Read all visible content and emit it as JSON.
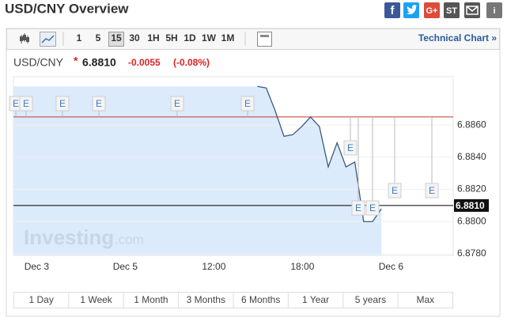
{
  "header": {
    "title": "USD/CNY Overview",
    "share_icons": [
      "f",
      "G+",
      "ST",
      "i"
    ]
  },
  "toolbar": {
    "intervals": [
      "1",
      "5",
      "15",
      "30",
      "1H",
      "5H",
      "1D",
      "1W",
      "1M"
    ],
    "active": "15",
    "link": "Technical Chart »"
  },
  "quote": {
    "symbol": "USD/CNY",
    "marker": "*",
    "price": {
      "value": 6.881,
      "label": "6.8810"
    },
    "change": -0.0055,
    "change_percent": "(-0.08%)"
  },
  "chart_data": {
    "type": "line",
    "categories": [
      null,
      null,
      "Dec 3",
      null,
      null,
      null,
      null,
      null,
      null,
      null,
      null,
      null,
      "Dec 5",
      null,
      null,
      null,
      null,
      null,
      null,
      null,
      null,
      null,
      "12:00",
      null,
      null,
      null,
      null,
      null,
      null,
      null,
      null,
      null,
      "18:00",
      null,
      null,
      null,
      null,
      null,
      null,
      null,
      null,
      null,
      "Dec 6",
      null,
      null,
      null,
      null,
      null,
      null,
      null
    ],
    "values": [
      null,
      null,
      null,
      null,
      null,
      null,
      null,
      null,
      null,
      null,
      null,
      null,
      null,
      null,
      null,
      null,
      null,
      null,
      null,
      null,
      null,
      null,
      null,
      null,
      null,
      null,
      null,
      6.8884,
      6.8883,
      6.8869,
      6.8853,
      6.8854,
      6.8859,
      6.8865,
      6.8859,
      6.8834,
      6.8849,
      6.8834,
      6.8837,
      6.88,
      6.88,
      6.8808,
      null,
      null,
      null,
      null,
      null,
      null,
      null,
      null
    ],
    "color": "#3d5a80",
    "fill": "#dcebfb",
    "ylim": [
      6.8779,
      6.889
    ],
    "yticks": [
      {
        "value": 6.878,
        "label": "6.8780"
      },
      {
        "value": 6.88,
        "label": "6.8800"
      },
      {
        "value": 6.882,
        "label": "6.8820"
      },
      {
        "value": 6.884,
        "label": "6.8840"
      },
      {
        "value": 6.886,
        "label": "6.8860"
      }
    ],
    "previous_close": 6.8865,
    "grid": true,
    "event_label": "E"
  },
  "watermark": {
    "brand": "Investing",
    "suffix": ".com"
  },
  "ranges": [
    "1 Day",
    "1 Week",
    "1 Month",
    "3 Months",
    "6 Months",
    "1 Year",
    "5 years",
    "Max"
  ]
}
